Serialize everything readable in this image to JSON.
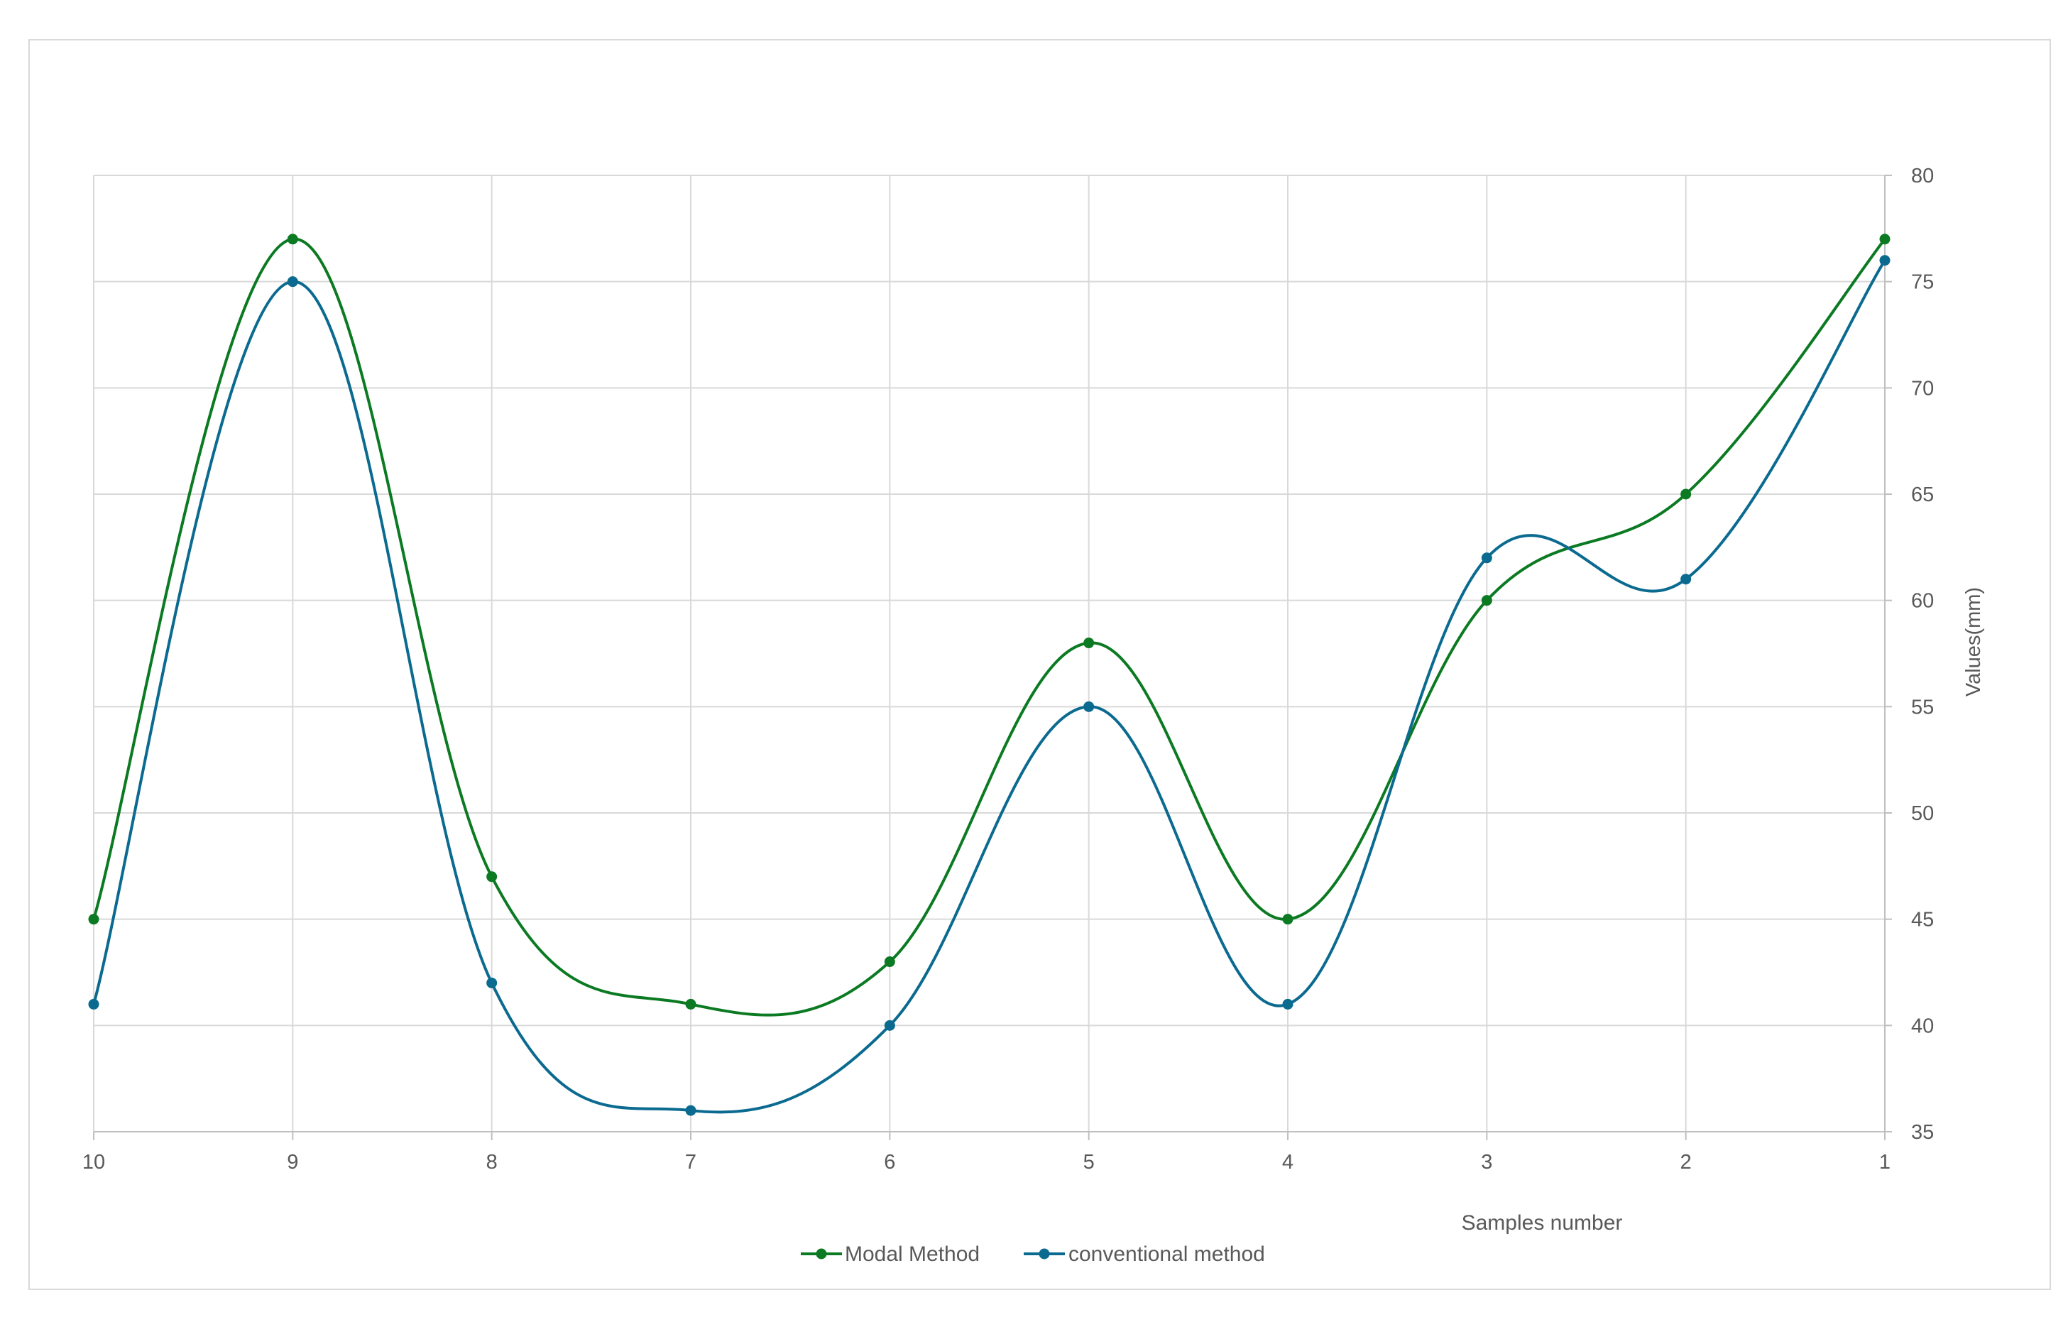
{
  "chart_data": {
    "type": "line",
    "smooth": true,
    "categories": [
      "10",
      "9",
      "8",
      "7",
      "6",
      "5",
      "4",
      "3",
      "2",
      "1"
    ],
    "series": [
      {
        "name": "Modal Method",
        "values": [
          45,
          77,
          47,
          41,
          43,
          58,
          45,
          60,
          65,
          77
        ],
        "color": "#0b7a22"
      },
      {
        "name": "conventional method",
        "values": [
          41,
          75,
          42,
          36,
          40,
          55,
          41,
          62,
          61,
          76
        ],
        "color": "#0b6a8f"
      }
    ],
    "xlabel": "Samples number",
    "ylabel": "Values(mm)",
    "ylim": [
      35,
      80
    ],
    "yticks": [
      "35",
      "40",
      "45",
      "50",
      "55",
      "60",
      "65",
      "70",
      "75",
      "80"
    ],
    "y_axis_side": "right",
    "grid": true,
    "legend_position": "bottom-center"
  },
  "colors": {
    "grid": "#d9d9d9",
    "axis": "#bfbfbf",
    "tick_text": "#595959",
    "frame_border": "#d9d9d9"
  }
}
